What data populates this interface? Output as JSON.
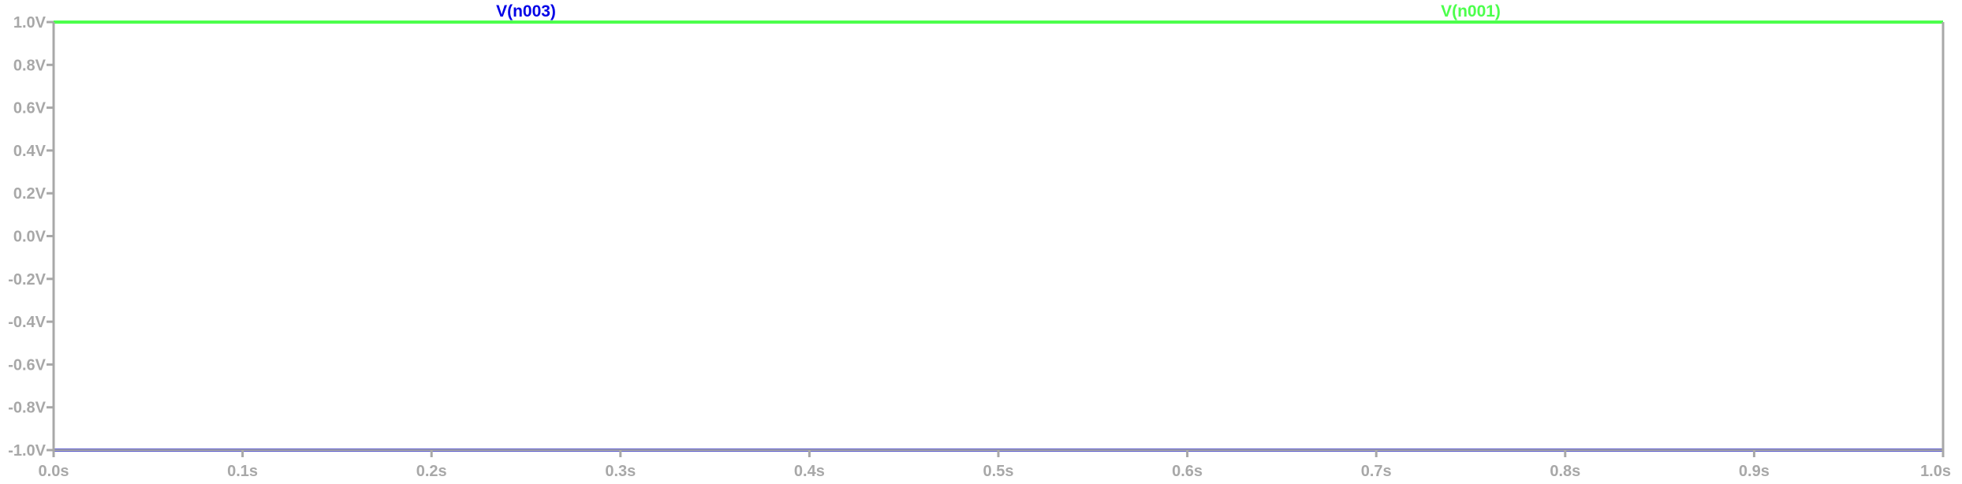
{
  "chart_data": {
    "type": "line",
    "title": "",
    "xlabel": "",
    "ylabel": "",
    "xlim": [
      0.0,
      1.0
    ],
    "ylim": [
      -1.0,
      1.0
    ],
    "grid": false,
    "axis_color": "#a8a8a8",
    "x_ticks": [
      0.0,
      0.1,
      0.2,
      0.3,
      0.4,
      0.5,
      0.6,
      0.7,
      0.8,
      0.9,
      1.0
    ],
    "x_tick_labels": [
      "0.0s",
      "0.1s",
      "0.2s",
      "0.3s",
      "0.4s",
      "0.5s",
      "0.6s",
      "0.7s",
      "0.8s",
      "0.9s",
      "1.0s"
    ],
    "y_ticks": [
      1.0,
      0.8,
      0.6,
      0.4,
      0.2,
      0.0,
      -0.2,
      -0.4,
      -0.6,
      -0.8,
      -1.0
    ],
    "y_tick_labels": [
      "1.0V",
      "0.8V",
      "0.6V",
      "0.4V",
      "0.2V",
      "0.0V",
      "-0.2V",
      "-0.4V",
      "-0.6V",
      "-0.8V",
      "-1.0V"
    ],
    "series": [
      {
        "name": "V(n003)",
        "color": "#0000e6",
        "x": [
          0.0,
          1.0
        ],
        "y": [
          -1.0,
          -1.0
        ],
        "label_at_x": 0.25
      },
      {
        "name": "V(n001)",
        "color": "#4cff4c",
        "x": [
          0.0,
          1.0
        ],
        "y": [
          1.0,
          1.0
        ],
        "label_at_x": 0.75
      }
    ]
  }
}
